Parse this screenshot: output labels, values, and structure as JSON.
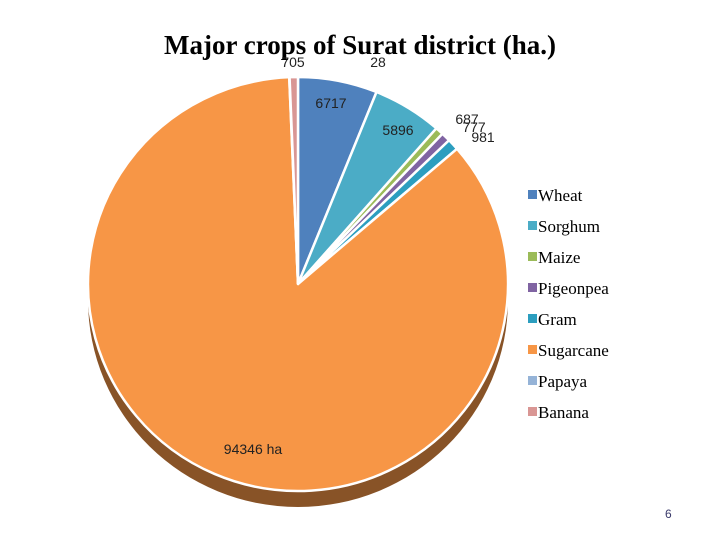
{
  "chart_data": {
    "type": "pie",
    "title": "Major crops of Surat district (ha.)",
    "categories": [
      "Wheat",
      "Sorghum",
      "Maize",
      "Pigeonpea",
      "Gram",
      "Sugarcane",
      "Papaya",
      "Banana"
    ],
    "values": [
      6717,
      5896,
      687,
      777,
      981,
      94346,
      28,
      705
    ],
    "data_labels": [
      "6717",
      "5896",
      "687",
      "777",
      "981",
      "94346 ha",
      "28",
      "705"
    ],
    "colors": [
      "#4f81bd",
      "#4bacc6",
      "#9bbb59",
      "#8064a2",
      "#2c9ebf",
      "#f79646",
      "#95b3d7",
      "#d99694"
    ],
    "start_angle_deg": 0,
    "legend_position": "right",
    "style": "3d"
  },
  "page_number": "6"
}
